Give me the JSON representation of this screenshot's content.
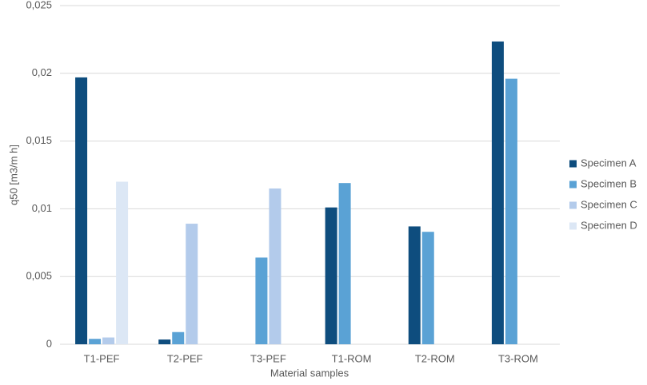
{
  "chart_data": {
    "type": "bar",
    "y_label": "q50 [m3/m h]",
    "x_label": "Material samples",
    "categories": [
      "T1-PEF",
      "T2-PEF",
      "T3-PEF",
      "T1-ROM",
      "T2-ROM",
      "T3-ROM"
    ],
    "series": [
      {
        "name": "Specimen A",
        "color": "#0e4d7e",
        "values": [
          0.0197,
          0.00035,
          null,
          0.0101,
          0.0087,
          0.02235
        ]
      },
      {
        "name": "Specimen B",
        "color": "#5aa2d5",
        "values": [
          0.0004,
          0.0009,
          0.0064,
          0.0119,
          0.0083,
          0.0196
        ]
      },
      {
        "name": "Specimen C",
        "color": "#b3cbeb",
        "values": [
          0.0005,
          0.0089,
          0.0115,
          null,
          null,
          null
        ]
      },
      {
        "name": "Specimen D",
        "color": "#dce7f5",
        "values": [
          0.012,
          null,
          null,
          null,
          null,
          null
        ]
      }
    ],
    "ylim": [
      0,
      0.025
    ],
    "yticks": [
      0,
      {
        "value": 0.005,
        "label": "0,005"
      },
      {
        "value": 0.01,
        "label": "0,01"
      },
      {
        "value": 0.015,
        "label": "0,015"
      },
      {
        "value": 0.02,
        "label": "0,02"
      },
      {
        "value": 0.025,
        "label": "0,025"
      }
    ],
    "grid": true,
    "legend": "right"
  }
}
